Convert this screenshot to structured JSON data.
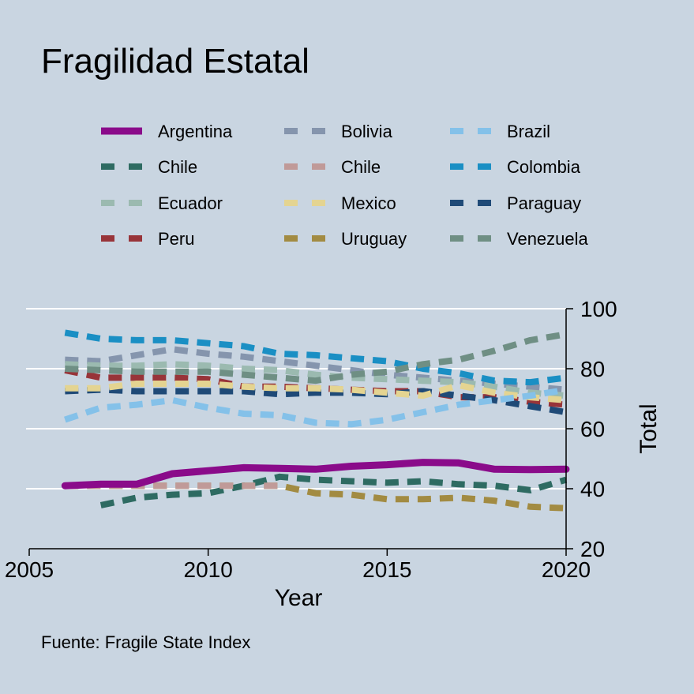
{
  "chart_data": {
    "type": "line",
    "title": "Fragilidad Estatal",
    "xlabel": "Year",
    "ylabel": "Total",
    "source": "Fuente: Fragile State Index",
    "xlim": [
      2005,
      2020
    ],
    "ylim": [
      20,
      100
    ],
    "x_ticks": [
      2005,
      2010,
      2015,
      2020
    ],
    "y_ticks": [
      20,
      40,
      60,
      80,
      100
    ],
    "y_axis_position": "right",
    "grid": true,
    "legend_position": "top",
    "background_color": "#c9d5e1",
    "series": [
      {
        "name": "Argentina",
        "color": "#8a0b8a",
        "style": "solid",
        "x": [
          2006,
          2007,
          2008,
          2009,
          2010,
          2011,
          2012,
          2013,
          2014,
          2015,
          2016,
          2017,
          2018,
          2019,
          2020
        ],
        "values": [
          41,
          41.5,
          41.5,
          45,
          46,
          47,
          46.8,
          46.5,
          47.5,
          48,
          48.8,
          48.6,
          46.5,
          46.4,
          46.5
        ]
      },
      {
        "name": "Bolivia",
        "color": "#8595ad",
        "style": "dashed",
        "x": [
          2006,
          2007,
          2008,
          2009,
          2010,
          2011,
          2012,
          2013,
          2014,
          2015,
          2016,
          2017,
          2018,
          2019,
          2020
        ],
        "values": [
          83,
          82.5,
          84.5,
          86.5,
          85,
          84,
          82.5,
          81,
          79.5,
          78,
          77,
          76,
          75,
          74,
          73
        ]
      },
      {
        "name": "Brazil",
        "color": "#84c1e9",
        "style": "dashed",
        "x": [
          2006,
          2007,
          2008,
          2009,
          2010,
          2011,
          2012,
          2013,
          2014,
          2015,
          2016,
          2017,
          2018,
          2019,
          2020
        ],
        "values": [
          63,
          67,
          68,
          69.5,
          67,
          65,
          64.5,
          62,
          61.5,
          63,
          65.5,
          68,
          69.5,
          71,
          73
        ]
      },
      {
        "name": "Chile",
        "color": "#2e6b62",
        "style": "dashed",
        "x": [
          2007,
          2008,
          2009,
          2010,
          2011,
          2012,
          2013,
          2014,
          2015,
          2016,
          2017,
          2018,
          2019,
          2020
        ],
        "values": [
          34.5,
          37,
          38,
          38.5,
          41,
          44,
          43,
          42.5,
          42,
          42.5,
          41.5,
          41,
          39.5,
          43
        ]
      },
      {
        "name": "Chile",
        "color": "#c09a98",
        "style": "dashed",
        "x": [
          2006,
          2007,
          2008,
          2009,
          2010,
          2011,
          2012
        ],
        "values": [
          41,
          41,
          41,
          41,
          41,
          41,
          41
        ]
      },
      {
        "name": "Colombia",
        "color": "#1a8fc4",
        "style": "dashed",
        "x": [
          2006,
          2007,
          2008,
          2009,
          2010,
          2011,
          2012,
          2013,
          2014,
          2015,
          2016,
          2017,
          2018,
          2019,
          2020
        ],
        "values": [
          92,
          90,
          89.5,
          89.5,
          88.5,
          87.5,
          85,
          84.5,
          83.5,
          82.5,
          80,
          78.5,
          76,
          75.5,
          77
        ]
      },
      {
        "name": "Ecuador",
        "color": "#9bbab0",
        "style": "dashed",
        "x": [
          2006,
          2007,
          2008,
          2009,
          2010,
          2011,
          2012,
          2013,
          2014,
          2015,
          2016,
          2017,
          2018,
          2019,
          2020
        ],
        "values": [
          81.5,
          81,
          81,
          81.5,
          81,
          80,
          79.5,
          78,
          77,
          76.5,
          76,
          75.5,
          74,
          72,
          71
        ]
      },
      {
        "name": "Mexico",
        "color": "#e4d491",
        "style": "dashed",
        "x": [
          2006,
          2007,
          2008,
          2009,
          2010,
          2011,
          2012,
          2013,
          2014,
          2015,
          2016,
          2017,
          2018,
          2019,
          2020
        ],
        "values": [
          73.5,
          73.5,
          75,
          75,
          75,
          74,
          73.5,
          73.5,
          73,
          72,
          71,
          74.5,
          72,
          70.5,
          69.5
        ]
      },
      {
        "name": "Paraguay",
        "color": "#1f4a77",
        "style": "dashed",
        "x": [
          2006,
          2007,
          2008,
          2009,
          2010,
          2011,
          2012,
          2013,
          2014,
          2015,
          2016,
          2017,
          2018,
          2019,
          2020
        ],
        "values": [
          72.5,
          73,
          72.5,
          72.5,
          72.5,
          72.5,
          71.5,
          72,
          72,
          71.5,
          72.5,
          71,
          69.5,
          67.5,
          65.5
        ]
      },
      {
        "name": "Peru",
        "color": "#983439",
        "style": "dashed",
        "x": [
          2006,
          2007,
          2008,
          2009,
          2010,
          2011,
          2012,
          2013,
          2014,
          2015,
          2016,
          2017,
          2018,
          2019,
          2020
        ],
        "values": [
          79.5,
          77,
          77,
          77,
          76.5,
          74,
          74,
          73.5,
          73,
          72.5,
          72.5,
          70.5,
          70.5,
          69,
          68
        ]
      },
      {
        "name": "Uruguay",
        "color": "#a28b42",
        "style": "dashed",
        "x": [
          2006,
          2007,
          2008,
          2009,
          2010,
          2011,
          2012,
          2013,
          2014,
          2015,
          2016,
          2017,
          2018,
          2019,
          2020
        ],
        "values": [
          41,
          41,
          41,
          41,
          41,
          41,
          41,
          38.5,
          38,
          36.5,
          36.5,
          37,
          36,
          34,
          33.5
        ]
      },
      {
        "name": "Venezuela",
        "color": "#6f8f84",
        "style": "dashed",
        "x": [
          2006,
          2007,
          2008,
          2009,
          2010,
          2011,
          2012,
          2013,
          2014,
          2015,
          2016,
          2017,
          2018,
          2019,
          2020
        ],
        "values": [
          80,
          79.5,
          79,
          79,
          79,
          78,
          77,
          76,
          78,
          79,
          81.5,
          83,
          86,
          89.5,
          91.5
        ]
      }
    ]
  }
}
